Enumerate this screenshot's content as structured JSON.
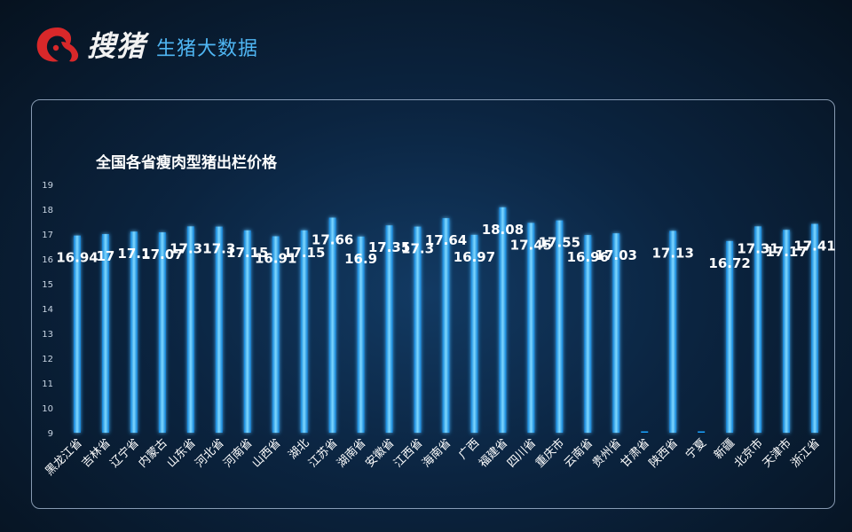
{
  "header": {
    "brand": "搜猪",
    "subtitle": "生猪大数据"
  },
  "icons": {
    "logo": "pig-logo-icon"
  },
  "colors": {
    "bar": "#1aa3ff",
    "bar_core": "#9fe3ff",
    "background": "#0b2440",
    "panel_border": "#bed2eb"
  },
  "chart_data": {
    "type": "bar",
    "title": "全国各省瘦肉型猪出栏价格",
    "categories": [
      "黑龙江省",
      "吉林省",
      "辽宁省",
      "内蒙古",
      "山东省",
      "河北省",
      "河南省",
      "山西省",
      "湖北",
      "江苏省",
      "湖南省",
      "安徽省",
      "江西省",
      "海南省",
      "广西",
      "福建省",
      "四川省",
      "重庆市",
      "云南省",
      "贵州省",
      "甘肃省",
      "陕西省",
      "宁夏",
      "新疆",
      "北京市",
      "天津市",
      "浙江省"
    ],
    "values": [
      16.94,
      17,
      17.1,
      17.07,
      17.31,
      17.3,
      17.15,
      16.91,
      17.15,
      17.66,
      16.9,
      17.35,
      17.3,
      17.64,
      16.97,
      18.08,
      17.45,
      17.55,
      16.96,
      17.03,
      null,
      17.13,
      null,
      16.72,
      17.31,
      17.17,
      17.41
    ],
    "ylim": [
      9,
      19
    ],
    "yticks": [
      9,
      10,
      11,
      12,
      13,
      14,
      15,
      16,
      17,
      18,
      19
    ],
    "grid": false,
    "legend": "none"
  }
}
